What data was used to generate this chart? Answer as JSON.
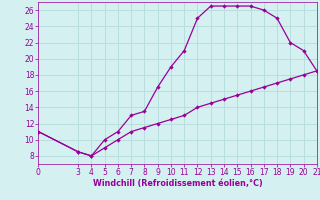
{
  "xlabel": "Windchill (Refroidissement éolien,°C)",
  "bg_color": "#d4f0f0",
  "grid_color": "#b8dede",
  "line_color": "#990099",
  "x_ticks": [
    0,
    3,
    4,
    5,
    6,
    7,
    8,
    9,
    10,
    11,
    12,
    13,
    14,
    15,
    16,
    17,
    18,
    19,
    20,
    21
  ],
  "ylim": [
    7,
    27
  ],
  "xlim": [
    0,
    21
  ],
  "yticks": [
    8,
    10,
    12,
    14,
    16,
    18,
    20,
    22,
    24,
    26
  ],
  "curve1_x": [
    0,
    3,
    4,
    5,
    6,
    7,
    8,
    9,
    10,
    11,
    12,
    13,
    14,
    15,
    16,
    17,
    18,
    19,
    20,
    21
  ],
  "curve1_y": [
    11,
    8.5,
    8,
    10,
    11,
    13,
    13.5,
    16.5,
    19,
    21,
    25,
    26.5,
    26.5,
    26.5,
    26.5,
    26,
    25,
    22,
    21,
    18.5
  ],
  "curve2_x": [
    0,
    3,
    4,
    5,
    6,
    7,
    8,
    9,
    10,
    11,
    12,
    13,
    14,
    15,
    16,
    17,
    18,
    19,
    20,
    21
  ],
  "curve2_y": [
    11,
    8.5,
    8,
    9,
    10,
    11,
    11.5,
    12,
    12.5,
    13,
    14,
    14.5,
    15,
    15.5,
    16,
    16.5,
    17,
    17.5,
    18,
    18.5
  ]
}
